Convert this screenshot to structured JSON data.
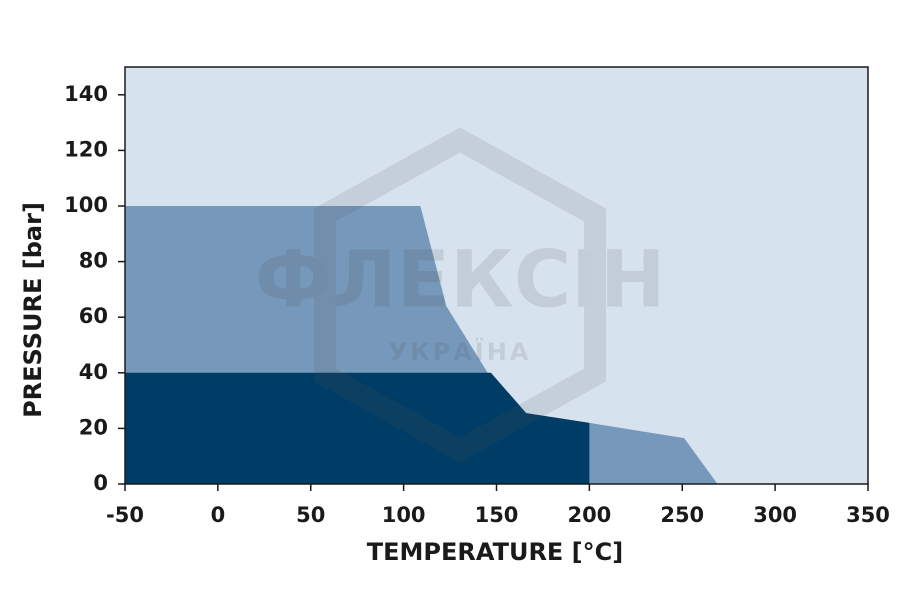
{
  "chart_data": {
    "type": "area",
    "xlabel": "TEMPERATURE [°C]",
    "ylabel": "PRESSURE [bar]",
    "xlim": [
      -50,
      350
    ],
    "xticks": [
      -50,
      0,
      50,
      100,
      150,
      200,
      250,
      300,
      350
    ],
    "ylim": [
      0,
      150
    ],
    "yticks": [
      0,
      20,
      40,
      60,
      80,
      100,
      120,
      140
    ],
    "background": "#d6e2ee",
    "series": [
      {
        "color": "#7699bb",
        "x": [
          -50,
          109,
          123,
          149,
          166,
          200,
          251,
          269
        ],
        "values": [
          100,
          100,
          64,
          36,
          25.5,
          22,
          16.5,
          0
        ]
      },
      {
        "color": "#003d66",
        "x": [
          -50,
          147,
          166,
          200
        ],
        "values": [
          40,
          40,
          25.5,
          22
        ]
      }
    ],
    "watermark": [
      "ФЛЕКСІН",
      "УКРАЇНА"
    ]
  }
}
